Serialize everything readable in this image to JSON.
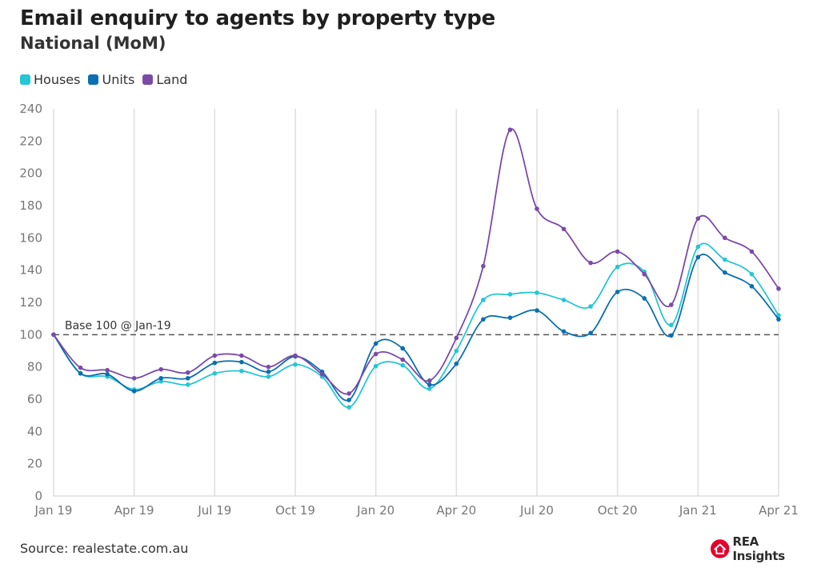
{
  "title": "Email enquiry to agents by property type",
  "subtitle": "National (MoM)",
  "source": "Source: realestate.com.au",
  "logo": {
    "text": "REA Insights",
    "color": "#e4002b"
  },
  "chart_data": {
    "type": "line",
    "x": [
      "Jan 19",
      "Feb 19",
      "Mar 19",
      "Apr 19",
      "May 19",
      "Jun 19",
      "Jul 19",
      "Aug 19",
      "Sep 19",
      "Oct 19",
      "Nov 19",
      "Dec 19",
      "Jan 20",
      "Feb 20",
      "Mar 20",
      "Apr 20",
      "May 20",
      "Jun 20",
      "Jul 20",
      "Aug 20",
      "Sep 20",
      "Oct 20",
      "Nov 20",
      "Dec 20",
      "Jan 21",
      "Feb 21",
      "Mar 21",
      "Apr 21"
    ],
    "x_ticks": [
      "Jan 19",
      "Apr 19",
      "Jul 19",
      "Oct 19",
      "Jan 20",
      "Apr 20",
      "Jul 20",
      "Oct 20",
      "Jan 21",
      "Apr 21"
    ],
    "y_ticks": [
      0,
      20,
      40,
      60,
      80,
      100,
      120,
      140,
      160,
      180,
      200,
      220,
      240
    ],
    "ylim": [
      0,
      240
    ],
    "series": [
      {
        "name": "Houses",
        "color": "#26c6d4",
        "values": [
          100,
          76,
          74,
          66,
          71,
          69,
          76,
          77.5,
          74,
          81.5,
          74,
          55,
          80.5,
          81,
          66.5,
          90,
          121.5,
          125,
          126,
          121.5,
          117.5,
          142,
          139,
          106,
          154.5,
          146.5,
          137.5,
          112
        ]
      },
      {
        "name": "Units",
        "color": "#0b6fb0",
        "values": [
          100,
          76,
          75.5,
          65,
          73,
          73,
          82.5,
          83,
          77,
          86.5,
          77,
          59.5,
          94.5,
          91.5,
          69,
          82,
          109.5,
          110.5,
          115,
          102,
          101,
          126.5,
          122.5,
          99.5,
          148,
          138.5,
          130,
          109.5
        ]
      },
      {
        "name": "Land",
        "color": "#7b4aa8",
        "values": [
          100,
          79.5,
          78,
          73,
          78.5,
          76.5,
          87,
          87,
          80,
          87,
          75.5,
          63.5,
          88,
          84.5,
          71.5,
          98,
          142.5,
          227,
          178,
          165.5,
          144.5,
          151.5,
          137.5,
          118.5,
          172,
          160,
          151.5,
          128.5
        ]
      }
    ],
    "baseline": {
      "value": 100,
      "label": "Base 100 @ Jan-19"
    },
    "grid": "vertical lines at x ticks",
    "legend": "top-left"
  }
}
